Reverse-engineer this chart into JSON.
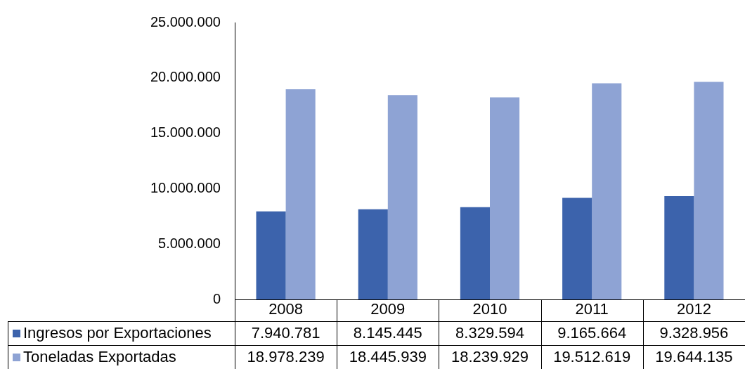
{
  "chart_data": {
    "type": "bar",
    "categories": [
      "2008",
      "2009",
      "2010",
      "2011",
      "2012"
    ],
    "series": [
      {
        "name": "Ingresos por Exportaciones",
        "color": "#3c63ac",
        "values": [
          7940781,
          8145445,
          8329594,
          9165664,
          9328956
        ],
        "value_labels": [
          "7.940.781",
          "8.145.445",
          "8.329.594",
          "9.165.664",
          "9.328.956"
        ]
      },
      {
        "name": "Toneladas Exportadas",
        "color": "#8ea3d4",
        "values": [
          18978239,
          18445939,
          18239929,
          19512619,
          19644135
        ],
        "value_labels": [
          "18.978.239",
          "18.445.939",
          "18.239.929",
          "19.512.619",
          "19.644.135"
        ]
      }
    ],
    "ylim": [
      0,
      25000000
    ],
    "yticks": [
      0,
      {
        "value": 5000000,
        "label": "5.000.000"
      },
      {
        "value": 10000000,
        "label": "10.000.000"
      },
      {
        "value": 15000000,
        "label": "15.000.000"
      },
      {
        "value": 20000000,
        "label": "20.000.000"
      },
      {
        "value": 25000000,
        "label": "25.000.000"
      }
    ],
    "legend": "bottom"
  }
}
